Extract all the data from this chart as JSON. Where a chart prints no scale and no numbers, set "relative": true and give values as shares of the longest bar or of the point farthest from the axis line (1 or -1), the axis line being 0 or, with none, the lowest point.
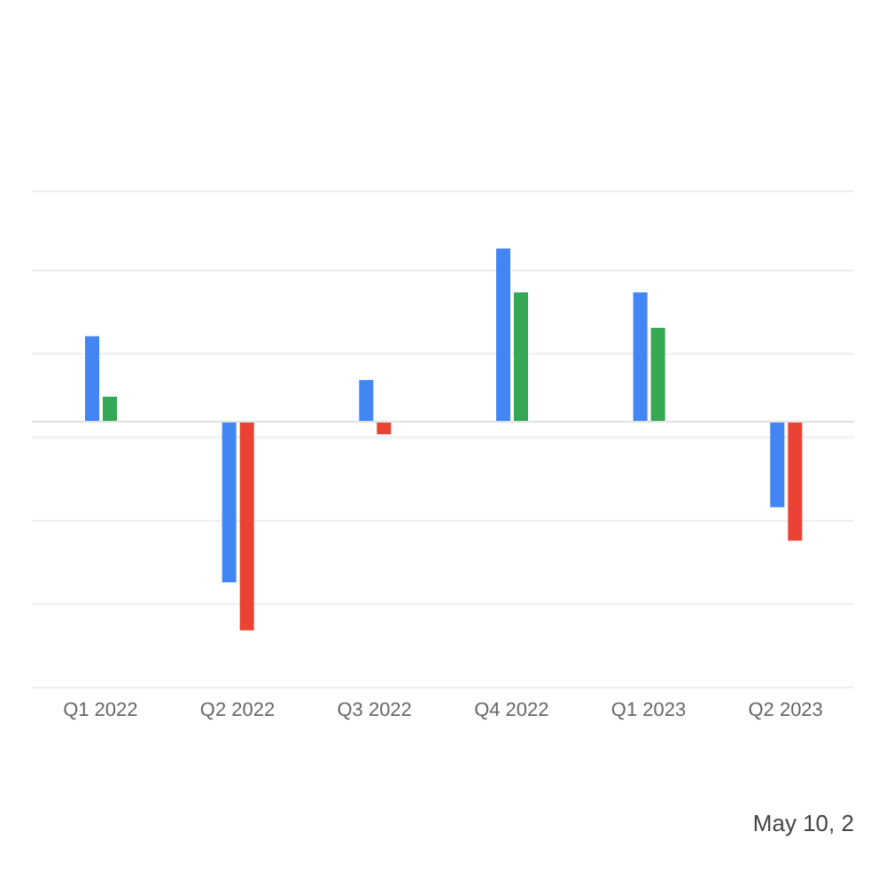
{
  "chart_data": {
    "type": "bar",
    "relative": true,
    "grid": "y",
    "categories": [
      "Q1 2022",
      "Q2 2022",
      "Q3 2022",
      "Q4 2022",
      "Q1 2023",
      "Q2 2023"
    ],
    "series": [
      {
        "color": "#4285f4",
        "values": [
          0.41,
          -0.77,
          0.2,
          0.83,
          0.62,
          -0.41
        ]
      },
      {
        "colors": [
          "#34a853",
          "#ea4335",
          "#ea4335",
          "#34a853",
          "#34a853",
          "#ea4335"
        ],
        "values": [
          0.12,
          -1,
          -0.06,
          0.62,
          0.45,
          -0.57
        ]
      }
    ],
    "annotations": [
      "May 10, 2"
    ]
  }
}
